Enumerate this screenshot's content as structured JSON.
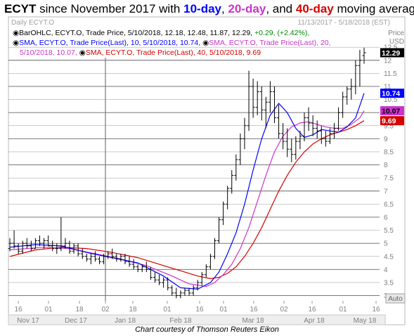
{
  "title": {
    "ticker": "ECYT",
    "since": " since November 2017 with ",
    "ma10": "10-day",
    "comma1": ", ",
    "ma20": "20-day",
    "comma2": ", and ",
    "ma40": "40-day",
    "suffix": " moving averages"
  },
  "panel": {
    "symbol_label": "Daily ECYT.O",
    "date_range": "11/13/2017 - 5/18/2018 (EST)",
    "price_label": "Price",
    "currency_label": "USD",
    "auto_button": "Auto"
  },
  "legend": {
    "line1_a": "BarOHLC, ECYT.O, Trade Price, 5/10/2018, 12.18, 12.48, 11.87, 12.29, ",
    "line1_b": "+0.29, (+2.42%),",
    "line2_a": "SMA, ECYT.O, Trade Price(Last),  10, 5/10/2018, 10.74, ",
    "line2_b": "SMA, ECYT.O, Trade Price(Last),  20,",
    "line3_a": "5/10/2018, 10.07, ",
    "line3_b": "SMA, ECYT.O, Trade Price(Last),  40, 5/10/2018, 9.69"
  },
  "credit": "Chart courtesy of Thomson Reuters Eikon",
  "colors": {
    "price_bars": "#000000",
    "sma10": "#0000ff",
    "sma20": "#cc33cc",
    "sma40": "#d40000",
    "grid": "#555555"
  },
  "chart_data": {
    "type": "line",
    "ylim": [
      2.8,
      12.8
    ],
    "y_ticks": [
      "3",
      "3.5",
      "4",
      "4.5",
      "5",
      "5.5",
      "6",
      "6.5",
      "7",
      "7.5",
      "8",
      "8.5",
      "9",
      "9.5",
      "10",
      "10.5",
      "11",
      "11.5",
      "12",
      "12.5"
    ],
    "x_day_ticks": [
      "16",
      "01",
      "18",
      "02",
      "18",
      "01",
      "16",
      "01",
      "16",
      "02",
      "16",
      "01",
      "16"
    ],
    "x_month_labels": [
      "Nov 17",
      "Dec 17",
      "Jan 18",
      "Feb 18",
      "Mar 18",
      "Apr 18",
      "May 18"
    ],
    "last_values": {
      "price": "12.29",
      "sma10": "10.74",
      "sma20": "10.07",
      "sma40": "9.69"
    },
    "ohlc": [
      [
        4.8,
        5.2,
        4.7,
        5.0
      ],
      [
        5.0,
        5.5,
        4.8,
        4.9
      ],
      [
        4.9,
        5.0,
        4.6,
        4.7
      ],
      [
        4.7,
        5.1,
        4.6,
        5.0
      ],
      [
        5.0,
        5.2,
        4.8,
        4.9
      ],
      [
        4.9,
        5.1,
        4.7,
        4.8
      ],
      [
        4.8,
        5.2,
        4.8,
        5.1
      ],
      [
        5.1,
        5.3,
        4.9,
        5.0
      ],
      [
        5.0,
        5.2,
        4.8,
        5.1
      ],
      [
        5.1,
        5.3,
        4.9,
        4.9
      ],
      [
        4.9,
        5.1,
        4.7,
        4.8
      ],
      [
        4.8,
        5.0,
        4.6,
        4.8
      ],
      [
        4.8,
        6.0,
        4.7,
        4.9
      ],
      [
        4.9,
        5.2,
        4.8,
        5.0
      ],
      [
        5.0,
        5.1,
        4.6,
        4.7
      ],
      [
        4.7,
        5.0,
        4.6,
        4.9
      ],
      [
        4.9,
        5.0,
        4.5,
        4.6
      ],
      [
        4.6,
        4.8,
        4.4,
        4.5
      ],
      [
        4.5,
        4.6,
        4.3,
        4.4
      ],
      [
        4.4,
        4.6,
        4.2,
        4.5
      ],
      [
        4.5,
        4.7,
        4.3,
        4.4
      ],
      [
        4.4,
        4.5,
        4.2,
        4.3
      ],
      [
        4.3,
        4.6,
        4.2,
        4.5
      ],
      [
        4.5,
        4.7,
        4.4,
        4.6
      ],
      [
        4.6,
        4.8,
        4.4,
        4.5
      ],
      [
        4.5,
        4.6,
        4.3,
        4.4
      ],
      [
        4.4,
        4.6,
        4.3,
        4.5
      ],
      [
        4.5,
        4.6,
        4.2,
        4.3
      ],
      [
        4.3,
        4.5,
        4.1,
        4.2
      ],
      [
        4.2,
        4.4,
        4.0,
        4.1
      ],
      [
        4.1,
        4.2,
        3.9,
        4.0
      ],
      [
        4.0,
        4.2,
        3.9,
        4.1
      ],
      [
        4.1,
        4.3,
        3.9,
        4.0
      ],
      [
        4.0,
        4.1,
        3.6,
        3.7
      ],
      [
        3.7,
        3.9,
        3.5,
        3.6
      ],
      [
        3.6,
        3.8,
        3.4,
        3.5
      ],
      [
        3.5,
        3.7,
        3.3,
        3.6
      ],
      [
        3.6,
        3.7,
        3.2,
        3.3
      ],
      [
        3.3,
        3.4,
        3.0,
        3.1
      ],
      [
        3.1,
        3.3,
        2.9,
        3.0
      ],
      [
        3.0,
        3.2,
        2.9,
        3.1
      ],
      [
        3.1,
        3.3,
        3.0,
        3.2
      ],
      [
        3.2,
        3.3,
        3.0,
        3.1
      ],
      [
        3.1,
        3.4,
        3.0,
        3.3
      ],
      [
        3.3,
        3.6,
        3.2,
        3.5
      ],
      [
        3.5,
        3.9,
        3.4,
        3.8
      ],
      [
        3.8,
        4.2,
        3.7,
        4.1
      ],
      [
        4.1,
        4.6,
        4.0,
        4.5
      ],
      [
        4.5,
        5.2,
        4.4,
        5.1
      ],
      [
        5.1,
        6.0,
        5.0,
        5.9
      ],
      [
        5.9,
        6.6,
        5.7,
        6.5
      ],
      [
        6.5,
        7.2,
        6.3,
        7.1
      ],
      [
        7.1,
        7.8,
        6.9,
        7.6
      ],
      [
        7.6,
        8.4,
        7.4,
        8.2
      ],
      [
        8.2,
        9.2,
        8.0,
        9.0
      ],
      [
        9.0,
        9.8,
        8.6,
        9.5
      ],
      [
        9.5,
        11.6,
        9.3,
        11.0
      ],
      [
        11.0,
        11.3,
        9.8,
        10.2
      ],
      [
        10.2,
        11.2,
        9.9,
        10.8
      ],
      [
        10.8,
        11.0,
        9.7,
        10.1
      ],
      [
        10.1,
        10.6,
        9.4,
        10.4
      ],
      [
        10.4,
        11.2,
        10.0,
        10.8
      ],
      [
        10.8,
        11.0,
        9.6,
        9.8
      ],
      [
        9.8,
        10.3,
        9.0,
        9.2
      ],
      [
        9.2,
        9.6,
        8.6,
        8.9
      ],
      [
        8.9,
        9.4,
        8.3,
        8.6
      ],
      [
        8.6,
        9.0,
        8.1,
        8.4
      ],
      [
        8.4,
        9.1,
        8.2,
        8.9
      ],
      [
        8.9,
        9.3,
        8.6,
        9.1
      ],
      [
        9.1,
        10.0,
        8.9,
        9.8
      ],
      [
        9.8,
        10.2,
        9.3,
        9.6
      ],
      [
        9.6,
        9.9,
        9.1,
        9.4
      ],
      [
        9.4,
        9.7,
        9.0,
        9.3
      ],
      [
        9.3,
        9.5,
        8.8,
        9.0
      ],
      [
        9.0,
        9.3,
        8.7,
        8.9
      ],
      [
        8.9,
        9.4,
        8.8,
        9.2
      ],
      [
        9.2,
        9.6,
        9.0,
        9.4
      ],
      [
        9.4,
        10.2,
        9.3,
        10.0
      ],
      [
        10.0,
        10.8,
        9.8,
        10.6
      ],
      [
        10.6,
        11.0,
        10.3,
        10.9
      ],
      [
        10.9,
        11.3,
        10.5,
        11.0
      ],
      [
        11.0,
        12.0,
        10.7,
        11.8
      ],
      [
        11.8,
        12.4,
        11.0,
        12.0
      ],
      [
        12.18,
        12.48,
        11.87,
        12.29
      ]
    ],
    "sma10": [
      [
        0,
        4.85
      ],
      [
        6,
        4.95
      ],
      [
        12,
        4.9
      ],
      [
        18,
        4.65
      ],
      [
        24,
        4.45
      ],
      [
        30,
        4.25
      ],
      [
        36,
        3.75
      ],
      [
        40,
        3.3
      ],
      [
        44,
        3.25
      ],
      [
        47,
        3.5
      ],
      [
        49,
        3.9
      ],
      [
        51,
        4.6
      ],
      [
        53,
        5.4
      ],
      [
        55,
        6.5
      ],
      [
        57,
        7.8
      ],
      [
        59,
        9.0
      ],
      [
        61,
        9.9
      ],
      [
        63,
        10.35
      ],
      [
        65,
        10.0
      ],
      [
        67,
        9.4
      ],
      [
        69,
        9.05
      ],
      [
        71,
        9.15
      ],
      [
        73,
        9.35
      ],
      [
        75,
        9.3
      ],
      [
        77,
        9.25
      ],
      [
        79,
        9.45
      ],
      [
        81,
        9.8
      ],
      [
        83,
        10.74
      ]
    ],
    "sma20": [
      [
        0,
        4.75
      ],
      [
        8,
        4.85
      ],
      [
        14,
        4.8
      ],
      [
        20,
        4.6
      ],
      [
        26,
        4.4
      ],
      [
        32,
        4.15
      ],
      [
        38,
        3.75
      ],
      [
        42,
        3.45
      ],
      [
        46,
        3.35
      ],
      [
        48,
        3.5
      ],
      [
        50,
        3.8
      ],
      [
        52,
        4.2
      ],
      [
        54,
        4.8
      ],
      [
        56,
        5.6
      ],
      [
        58,
        6.6
      ],
      [
        60,
        7.6
      ],
      [
        62,
        8.5
      ],
      [
        64,
        9.1
      ],
      [
        66,
        9.45
      ],
      [
        68,
        9.6
      ],
      [
        70,
        9.65
      ],
      [
        72,
        9.55
      ],
      [
        74,
        9.45
      ],
      [
        76,
        9.4
      ],
      [
        78,
        9.4
      ],
      [
        80,
        9.55
      ],
      [
        82,
        9.8
      ],
      [
        83,
        10.07
      ]
    ],
    "sma40": [
      [
        0,
        4.5
      ],
      [
        6,
        4.75
      ],
      [
        12,
        4.85
      ],
      [
        18,
        4.8
      ],
      [
        24,
        4.65
      ],
      [
        30,
        4.45
      ],
      [
        36,
        4.15
      ],
      [
        40,
        3.95
      ],
      [
        44,
        3.75
      ],
      [
        47,
        3.65
      ],
      [
        49,
        3.7
      ],
      [
        51,
        3.85
      ],
      [
        53,
        4.1
      ],
      [
        55,
        4.5
      ],
      [
        57,
        5.0
      ],
      [
        59,
        5.6
      ],
      [
        61,
        6.3
      ],
      [
        63,
        7.0
      ],
      [
        65,
        7.6
      ],
      [
        67,
        8.1
      ],
      [
        69,
        8.5
      ],
      [
        71,
        8.8
      ],
      [
        73,
        9.0
      ],
      [
        75,
        9.15
      ],
      [
        77,
        9.25
      ],
      [
        79,
        9.35
      ],
      [
        81,
        9.5
      ],
      [
        83,
        9.69
      ]
    ]
  }
}
